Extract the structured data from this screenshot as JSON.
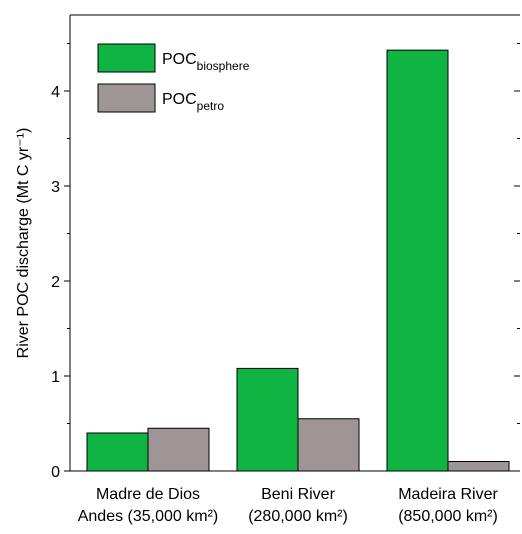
{
  "chart_data": {
    "type": "bar",
    "ylabel": "River POC discharge (Mt C yr⁻¹)",
    "categories": [
      "Madre de Dios\nAndes (35,000 km²)",
      "Beni River\n(280,000 km²)",
      "Madeira River\n(850,000 km²)"
    ],
    "series": [
      {
        "name": "POC_biosphere",
        "color": "#10b443",
        "values": [
          0.4,
          1.08,
          4.43
        ]
      },
      {
        "name": "POC_petro",
        "color": "#9e9696",
        "values": [
          0.45,
          0.55,
          0.1
        ]
      }
    ],
    "ylim": [
      0,
      4.8
    ],
    "yticks": [
      0,
      1,
      2,
      3,
      4
    ],
    "yminorticks": [
      0.5,
      1.5,
      2.5,
      3.5,
      4.5
    ],
    "legend": "upper-left"
  }
}
